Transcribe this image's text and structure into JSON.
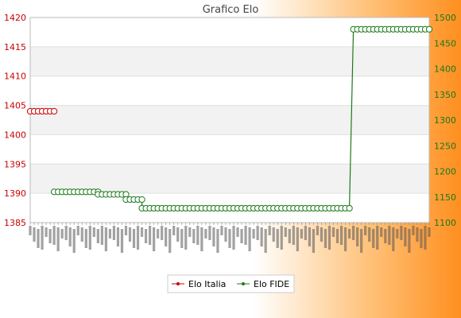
{
  "chart_data": {
    "type": "line",
    "title": "Grafico Elo",
    "legend_position": "bottom-center",
    "grid": true,
    "series": [
      {
        "name": "Elo Italia",
        "axis": "left",
        "color": "#cc0000",
        "points": [
          {
            "x": 0,
            "y": 1404
          },
          {
            "x": 1,
            "y": 1404
          },
          {
            "x": 2,
            "y": 1404
          },
          {
            "x": 3,
            "y": 1404
          },
          {
            "x": 4,
            "y": 1404
          },
          {
            "x": 5,
            "y": 1404
          },
          {
            "x": 6,
            "y": 1404
          }
        ]
      },
      {
        "name": "Elo FIDE",
        "axis": "right",
        "color": "#1a7a1a",
        "segments": [
          {
            "from": 6,
            "to": 17,
            "y": 1160
          },
          {
            "from": 17,
            "to": 24,
            "y": 1155
          },
          {
            "from": 24,
            "to": 28,
            "y": 1145
          },
          {
            "from": 28,
            "to": 80,
            "y": 1128
          },
          {
            "from": 81,
            "to": 100,
            "y": 1477
          }
        ]
      }
    ],
    "y_left": {
      "min": 1385,
      "max": 1420,
      "ticks": [
        1385,
        1390,
        1395,
        1400,
        1405,
        1410,
        1415,
        1420
      ],
      "color": "#cc0000"
    },
    "y_right": {
      "min": 1100,
      "max": 1500,
      "ticks": [
        1100,
        1150,
        1200,
        1250,
        1300,
        1350,
        1400,
        1450,
        1500
      ],
      "color": "#1a7a1a"
    },
    "x_range": [
      0,
      100
    ]
  }
}
